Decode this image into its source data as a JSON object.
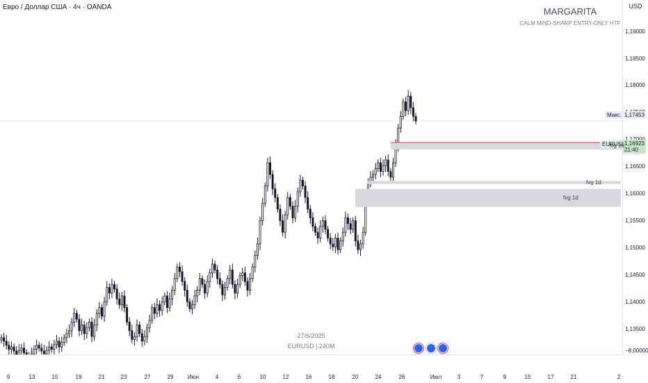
{
  "header": {
    "title": "Евро / Доллар США · 4ч · OANDA",
    "currency": "USD"
  },
  "watermark": {
    "name": "MARGARITA",
    "subtitle": "CALM MIND-SHARP ENTRY-ONLY HTF"
  },
  "center_info": {
    "date": "27/6/2025",
    "symbol": "EURUSD | 240M"
  },
  "price_axis": {
    "ticks": [
      "1,19000",
      "1,18500",
      "1,18000",
      "1,17500",
      "1,17000",
      "1,16500",
      "1,16000",
      "1,15500",
      "1,15000",
      "1,14500",
      "1,14000",
      "1,13500",
      "−8,00000"
    ]
  },
  "tags": {
    "max_label": "Макс.",
    "max_value": "1,17453",
    "symbol": "EURUSD",
    "price": "1,16923",
    "countdown": "21:40"
  },
  "zones": [
    {
      "label": "fvg 1d",
      "top": 1.1655,
      "bottom": 1.1643,
      "line": true
    },
    {
      "label": "fvg 1d",
      "top": 1.15885,
      "bottom": 1.15835,
      "line": false
    },
    {
      "label": "fvg 1d",
      "top": 1.1575,
      "bottom": 1.1544,
      "line": false
    }
  ],
  "time_axis": {
    "labels": [
      "9",
      "13",
      "15",
      "19",
      "21",
      "23",
      "27",
      "29",
      "Июн",
      "4",
      "6",
      "10",
      "12",
      "16",
      "18",
      "20",
      "24",
      "26",
      "Июл",
      "3",
      "7",
      "9",
      "15",
      "17",
      "21",
      "2"
    ]
  },
  "colors": {
    "up": "#ffffff",
    "down": "#131722",
    "wick": "#131722",
    "zone": "#d8d9de",
    "zone_line": "#f23645",
    "price_tag": "#c8e6c9",
    "event": "#2962ff"
  },
  "chart_data": {
    "type": "candlestick",
    "symbol": "EURUSD",
    "timeframe": "4h",
    "ylim": [
      1.1313,
      1.1925
    ],
    "max_price": 1.17453,
    "last_price": 1.16923,
    "description_of_series": "EUR/USD 4h candles from mid-May to late June 2025",
    "closes": [
      1.1318,
      1.1312,
      1.1305,
      1.1298,
      1.1302,
      1.1295,
      1.1288,
      1.1296,
      1.13,
      1.1292,
      1.1285,
      1.128,
      1.129,
      1.1298,
      1.1305,
      1.13,
      1.1295,
      1.129,
      1.1296,
      1.1302,
      1.1298,
      1.1306,
      1.1312,
      1.1302,
      1.131,
      1.1318,
      1.1325,
      1.133,
      1.1345,
      1.136,
      1.135,
      1.133,
      1.134,
      1.1325,
      1.1335,
      1.1345,
      1.132,
      1.134,
      1.136,
      1.137,
      1.1355,
      1.138,
      1.1405,
      1.1395,
      1.141,
      1.1402,
      1.1385,
      1.1375,
      1.139,
      1.137,
      1.1345,
      1.133,
      1.1315,
      1.132,
      1.134,
      1.1325,
      1.1312,
      1.132,
      1.1335,
      1.1348,
      1.137,
      1.136,
      1.1375,
      1.1365,
      1.138,
      1.139,
      1.137,
      1.1385,
      1.14,
      1.142,
      1.144,
      1.1432,
      1.1415,
      1.14,
      1.138,
      1.1368,
      1.1375,
      1.139,
      1.14,
      1.142,
      1.141,
      1.1395,
      1.1415,
      1.143,
      1.1445,
      1.1435,
      1.142,
      1.141,
      1.1392,
      1.1405,
      1.142,
      1.1435,
      1.141,
      1.1395,
      1.141,
      1.1425,
      1.143,
      1.1415,
      1.14,
      1.142,
      1.144,
      1.146,
      1.148,
      1.152,
      1.155,
      1.158,
      1.162,
      1.16,
      1.1575,
      1.156,
      1.154,
      1.152,
      1.15,
      1.153,
      1.156,
      1.1545,
      1.1525,
      1.1545,
      1.157,
      1.159,
      1.158,
      1.156,
      1.154,
      1.1525,
      1.151,
      1.15,
      1.149,
      1.151,
      1.152,
      1.1505,
      1.149,
      1.148,
      1.1475,
      1.149,
      1.147,
      1.1485,
      1.15,
      1.1525,
      1.1515,
      1.1505,
      1.152,
      1.1485,
      1.147,
      1.148,
      1.15,
      1.156,
      1.1585,
      1.1595,
      1.16,
      1.161,
      1.162,
      1.1605,
      1.1615,
      1.1625,
      1.1605,
      1.1595,
      1.162,
      1.165,
      1.168,
      1.17,
      1.1725,
      1.171,
      1.1735,
      1.1715,
      1.17,
      1.1692
    ]
  }
}
